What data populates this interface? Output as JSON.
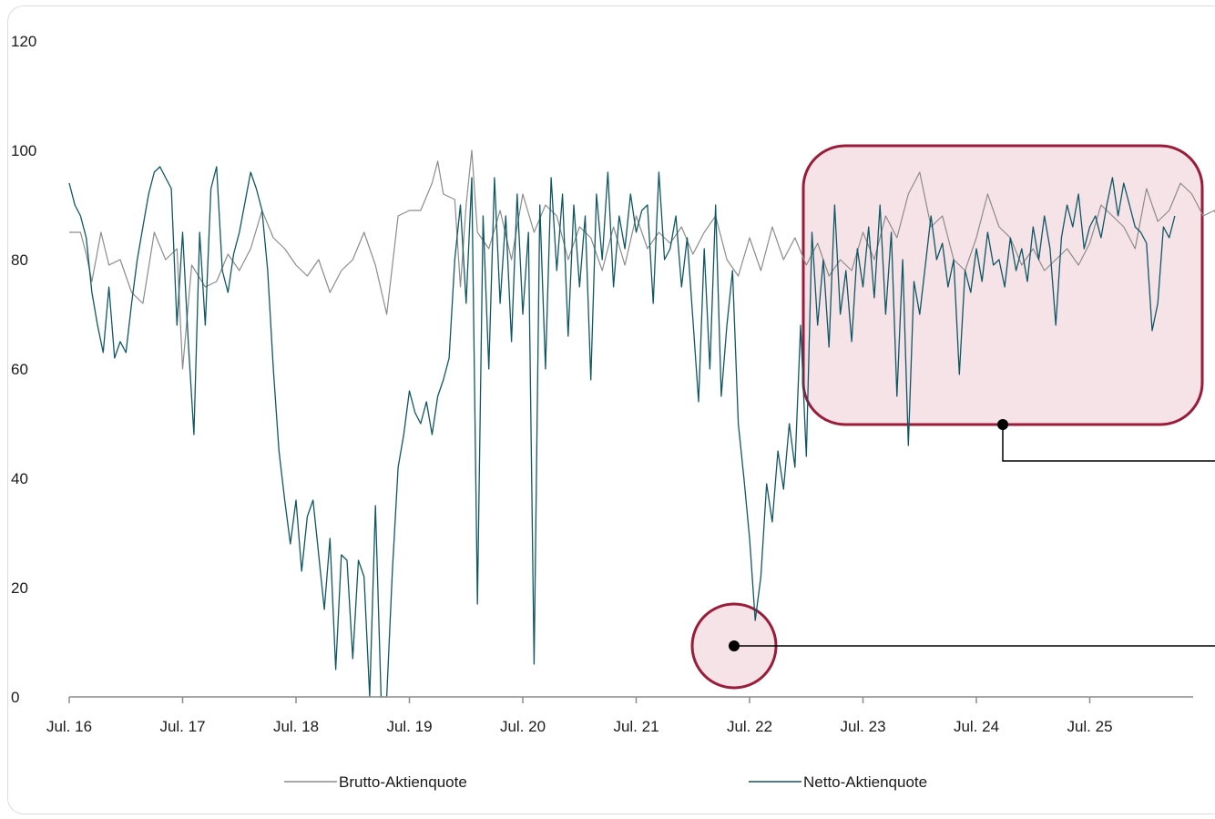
{
  "colors": {
    "brutto": "#8c8c8c",
    "netto": "#0f5764",
    "highlight_fill": "#f5e3e8",
    "highlight_stroke": "#9b1b3a",
    "axis": "#8c8c8c"
  },
  "legend": {
    "brutto_label": "Brutto-Aktienquote",
    "netto_label": "Netto-Aktienquote"
  },
  "chart_data": {
    "type": "line",
    "title": "",
    "xlabel": "",
    "ylabel": "",
    "ylim": [
      0,
      120
    ],
    "yticks": [
      0,
      20,
      40,
      60,
      80,
      100,
      120
    ],
    "xticks": [
      "Jul. 16",
      "Jul. 17",
      "Jul. 18",
      "Jul. 19",
      "Jul. 20",
      "Jul. 21",
      "Jul. 22",
      "Jul. 23",
      "Jul. 24",
      "Jul. 25"
    ],
    "x_start": "Jul. 16",
    "x_end": "Dez. 25",
    "legend_position": "bottom",
    "grid": false,
    "series": [
      {
        "name": "Brutto-Aktienquote",
        "color": "#8c8c8c",
        "points": [
          [
            2016.5,
            85
          ],
          [
            2016.6,
            85
          ],
          [
            2016.65,
            81
          ],
          [
            2016.7,
            76
          ],
          [
            2016.78,
            85
          ],
          [
            2016.85,
            79
          ],
          [
            2016.95,
            80
          ],
          [
            2017.05,
            74
          ],
          [
            2017.15,
            72
          ],
          [
            2017.25,
            85
          ],
          [
            2017.35,
            80
          ],
          [
            2017.45,
            82
          ],
          [
            2017.5,
            60
          ],
          [
            2017.58,
            79
          ],
          [
            2017.7,
            75
          ],
          [
            2017.8,
            76
          ],
          [
            2017.9,
            81
          ],
          [
            2018.0,
            78
          ],
          [
            2018.1,
            82
          ],
          [
            2018.2,
            89
          ],
          [
            2018.3,
            84
          ],
          [
            2018.4,
            82
          ],
          [
            2018.5,
            79
          ],
          [
            2018.6,
            77
          ],
          [
            2018.7,
            80
          ],
          [
            2018.8,
            74
          ],
          [
            2018.9,
            78
          ],
          [
            2019.0,
            80
          ],
          [
            2019.1,
            85
          ],
          [
            2019.2,
            79
          ],
          [
            2019.3,
            70
          ],
          [
            2019.4,
            88
          ],
          [
            2019.5,
            89
          ],
          [
            2019.6,
            89
          ],
          [
            2019.7,
            94
          ],
          [
            2019.75,
            98
          ],
          [
            2019.8,
            92
          ],
          [
            2019.9,
            91
          ],
          [
            2019.95,
            75
          ],
          [
            2020.0,
            90
          ],
          [
            2020.05,
            100
          ],
          [
            2020.1,
            85
          ],
          [
            2020.2,
            82
          ],
          [
            2020.3,
            89
          ],
          [
            2020.4,
            80
          ],
          [
            2020.5,
            92
          ],
          [
            2020.6,
            85
          ],
          [
            2020.7,
            90
          ],
          [
            2020.8,
            88
          ],
          [
            2020.9,
            80
          ],
          [
            2021.0,
            86
          ],
          [
            2021.1,
            84
          ],
          [
            2021.2,
            78
          ],
          [
            2021.3,
            86
          ],
          [
            2021.4,
            79
          ],
          [
            2021.5,
            88
          ],
          [
            2021.6,
            82
          ],
          [
            2021.7,
            85
          ],
          [
            2021.8,
            83
          ],
          [
            2021.9,
            86
          ],
          [
            2022.0,
            81
          ],
          [
            2022.1,
            85
          ],
          [
            2022.2,
            88
          ],
          [
            2022.3,
            80
          ],
          [
            2022.4,
            77
          ],
          [
            2022.5,
            84
          ],
          [
            2022.6,
            78
          ],
          [
            2022.7,
            86
          ],
          [
            2022.8,
            80
          ],
          [
            2022.9,
            84
          ],
          [
            2023.0,
            79
          ],
          [
            2023.1,
            83
          ],
          [
            2023.2,
            77
          ],
          [
            2023.3,
            80
          ],
          [
            2023.4,
            78
          ],
          [
            2023.5,
            85
          ],
          [
            2023.6,
            80
          ],
          [
            2023.7,
            88
          ],
          [
            2023.8,
            84
          ],
          [
            2023.9,
            92
          ],
          [
            2024.0,
            96
          ],
          [
            2024.1,
            86
          ],
          [
            2024.2,
            88
          ],
          [
            2024.3,
            80
          ],
          [
            2024.4,
            78
          ],
          [
            2024.5,
            84
          ],
          [
            2024.6,
            92
          ],
          [
            2024.7,
            86
          ],
          [
            2024.8,
            84
          ],
          [
            2024.9,
            79
          ],
          [
            2025.0,
            82
          ],
          [
            2025.1,
            78
          ],
          [
            2025.2,
            80
          ],
          [
            2025.3,
            82
          ],
          [
            2025.4,
            79
          ],
          [
            2025.5,
            83
          ],
          [
            2025.6,
            90
          ],
          [
            2025.7,
            88
          ],
          [
            2025.8,
            86
          ],
          [
            2025.9,
            82
          ],
          [
            2026.0,
            93
          ],
          [
            2026.1,
            87
          ],
          [
            2026.2,
            89
          ],
          [
            2026.3,
            94
          ],
          [
            2026.4,
            92
          ],
          [
            2026.5,
            88
          ],
          [
            2026.6,
            89
          ],
          [
            2026.7,
            84
          ],
          [
            2026.8,
            86
          ],
          [
            2026.9,
            78
          ],
          [
            2026.95,
            92
          ],
          [
            2027.0,
            86
          ]
        ]
      },
      {
        "name": "Netto-Aktienquote",
        "color": "#0f5764",
        "points": [
          [
            2016.5,
            94
          ],
          [
            2016.55,
            90
          ],
          [
            2016.6,
            88
          ],
          [
            2016.65,
            84
          ],
          [
            2016.7,
            74
          ],
          [
            2016.75,
            68
          ],
          [
            2016.8,
            63
          ],
          [
            2016.85,
            75
          ],
          [
            2016.9,
            62
          ],
          [
            2016.95,
            65
          ],
          [
            2017.0,
            63
          ],
          [
            2017.05,
            72
          ],
          [
            2017.1,
            80
          ],
          [
            2017.15,
            86
          ],
          [
            2017.2,
            92
          ],
          [
            2017.25,
            96
          ],
          [
            2017.3,
            97
          ],
          [
            2017.35,
            95
          ],
          [
            2017.4,
            93
          ],
          [
            2017.45,
            68
          ],
          [
            2017.5,
            85
          ],
          [
            2017.55,
            65
          ],
          [
            2017.6,
            48
          ],
          [
            2017.65,
            85
          ],
          [
            2017.7,
            68
          ],
          [
            2017.75,
            93
          ],
          [
            2017.8,
            97
          ],
          [
            2017.85,
            78
          ],
          [
            2017.9,
            74
          ],
          [
            2017.95,
            81
          ],
          [
            2018.0,
            85
          ],
          [
            2018.1,
            96
          ],
          [
            2018.15,
            93
          ],
          [
            2018.2,
            89
          ],
          [
            2018.25,
            78
          ],
          [
            2018.3,
            60
          ],
          [
            2018.35,
            45
          ],
          [
            2018.4,
            36
          ],
          [
            2018.45,
            28
          ],
          [
            2018.5,
            36
          ],
          [
            2018.55,
            23
          ],
          [
            2018.6,
            33
          ],
          [
            2018.65,
            36
          ],
          [
            2018.7,
            26
          ],
          [
            2018.75,
            16
          ],
          [
            2018.8,
            29
          ],
          [
            2018.85,
            5
          ],
          [
            2018.9,
            26
          ],
          [
            2018.95,
            25
          ],
          [
            2019.0,
            7
          ],
          [
            2019.05,
            25
          ],
          [
            2019.1,
            22
          ],
          [
            2019.15,
            0
          ],
          [
            2019.2,
            35
          ],
          [
            2019.25,
            0
          ],
          [
            2019.3,
            0
          ],
          [
            2019.35,
            23
          ],
          [
            2019.4,
            42
          ],
          [
            2019.45,
            48
          ],
          [
            2019.5,
            56
          ],
          [
            2019.55,
            52
          ],
          [
            2019.6,
            50
          ],
          [
            2019.65,
            54
          ],
          [
            2019.7,
            48
          ],
          [
            2019.75,
            55
          ],
          [
            2019.8,
            58
          ],
          [
            2019.85,
            62
          ],
          [
            2019.9,
            80
          ],
          [
            2019.95,
            90
          ],
          [
            2020.0,
            72
          ],
          [
            2020.05,
            95
          ],
          [
            2020.1,
            17
          ],
          [
            2020.15,
            88
          ],
          [
            2020.2,
            60
          ],
          [
            2020.25,
            95
          ],
          [
            2020.3,
            72
          ],
          [
            2020.35,
            88
          ],
          [
            2020.4,
            65
          ],
          [
            2020.45,
            92
          ],
          [
            2020.5,
            70
          ],
          [
            2020.55,
            85
          ],
          [
            2020.6,
            6
          ],
          [
            2020.65,
            90
          ],
          [
            2020.7,
            60
          ],
          [
            2020.75,
            95
          ],
          [
            2020.8,
            78
          ],
          [
            2020.85,
            92
          ],
          [
            2020.9,
            66
          ],
          [
            2020.95,
            90
          ],
          [
            2021.0,
            75
          ],
          [
            2021.05,
            88
          ],
          [
            2021.1,
            58
          ],
          [
            2021.15,
            92
          ],
          [
            2021.2,
            80
          ],
          [
            2021.25,
            96
          ],
          [
            2021.3,
            75
          ],
          [
            2021.35,
            88
          ],
          [
            2021.4,
            82
          ],
          [
            2021.45,
            92
          ],
          [
            2021.5,
            85
          ],
          [
            2021.55,
            89
          ],
          [
            2021.6,
            90
          ],
          [
            2021.65,
            72
          ],
          [
            2021.7,
            96
          ],
          [
            2021.75,
            80
          ],
          [
            2021.8,
            82
          ],
          [
            2021.85,
            88
          ],
          [
            2021.9,
            75
          ],
          [
            2021.95,
            84
          ],
          [
            2022.0,
            69
          ],
          [
            2022.05,
            54
          ],
          [
            2022.1,
            82
          ],
          [
            2022.15,
            60
          ],
          [
            2022.2,
            90
          ],
          [
            2022.25,
            55
          ],
          [
            2022.3,
            68
          ],
          [
            2022.35,
            78
          ],
          [
            2022.4,
            50
          ],
          [
            2022.45,
            40
          ],
          [
            2022.5,
            29
          ],
          [
            2022.55,
            14
          ],
          [
            2022.6,
            22
          ],
          [
            2022.65,
            39
          ],
          [
            2022.7,
            32
          ],
          [
            2022.75,
            45
          ],
          [
            2022.8,
            38
          ],
          [
            2022.85,
            50
          ],
          [
            2022.9,
            42
          ],
          [
            2022.95,
            68
          ],
          [
            2023.0,
            44
          ],
          [
            2023.05,
            85
          ],
          [
            2023.1,
            68
          ],
          [
            2023.15,
            80
          ],
          [
            2023.2,
            64
          ],
          [
            2023.25,
            90
          ],
          [
            2023.3,
            70
          ],
          [
            2023.35,
            78
          ],
          [
            2023.4,
            65
          ],
          [
            2023.45,
            82
          ],
          [
            2023.5,
            75
          ],
          [
            2023.55,
            86
          ],
          [
            2023.6,
            73
          ],
          [
            2023.65,
            90
          ],
          [
            2023.7,
            70
          ],
          [
            2023.75,
            85
          ],
          [
            2023.8,
            55
          ],
          [
            2023.85,
            80
          ],
          [
            2023.9,
            46
          ],
          [
            2023.95,
            76
          ],
          [
            2024.0,
            70
          ],
          [
            2024.1,
            88
          ],
          [
            2024.15,
            80
          ],
          [
            2024.2,
            83
          ],
          [
            2024.25,
            75
          ],
          [
            2024.3,
            80
          ],
          [
            2024.35,
            59
          ],
          [
            2024.4,
            78
          ],
          [
            2024.45,
            74
          ],
          [
            2024.5,
            82
          ],
          [
            2024.55,
            76
          ],
          [
            2024.6,
            85
          ],
          [
            2024.65,
            79
          ],
          [
            2024.7,
            80
          ],
          [
            2024.75,
            75
          ],
          [
            2024.8,
            84
          ],
          [
            2024.85,
            78
          ],
          [
            2024.9,
            82
          ],
          [
            2024.95,
            76
          ],
          [
            2025.0,
            86
          ],
          [
            2025.05,
            80
          ],
          [
            2025.1,
            88
          ],
          [
            2025.15,
            82
          ],
          [
            2025.2,
            68
          ],
          [
            2025.25,
            84
          ],
          [
            2025.3,
            90
          ],
          [
            2025.35,
            86
          ],
          [
            2025.4,
            92
          ],
          [
            2025.45,
            82
          ],
          [
            2025.5,
            86
          ],
          [
            2025.55,
            88
          ],
          [
            2025.6,
            84
          ],
          [
            2025.65,
            90
          ],
          [
            2025.7,
            95
          ],
          [
            2025.75,
            88
          ],
          [
            2025.8,
            94
          ],
          [
            2025.85,
            90
          ],
          [
            2025.9,
            86
          ],
          [
            2025.95,
            85
          ],
          [
            2026.0,
            83
          ],
          [
            2026.05,
            67
          ],
          [
            2026.1,
            72
          ],
          [
            2026.15,
            86
          ],
          [
            2026.2,
            84
          ],
          [
            2026.25,
            88
          ]
        ]
      }
    ]
  },
  "annotations": {
    "highlight_box": {
      "x_from": 2022.5,
      "x_to": 2025.8,
      "y_from": 50,
      "y_to": 100
    },
    "highlight_circle": {
      "x": 2021.85,
      "y": 9
    }
  }
}
